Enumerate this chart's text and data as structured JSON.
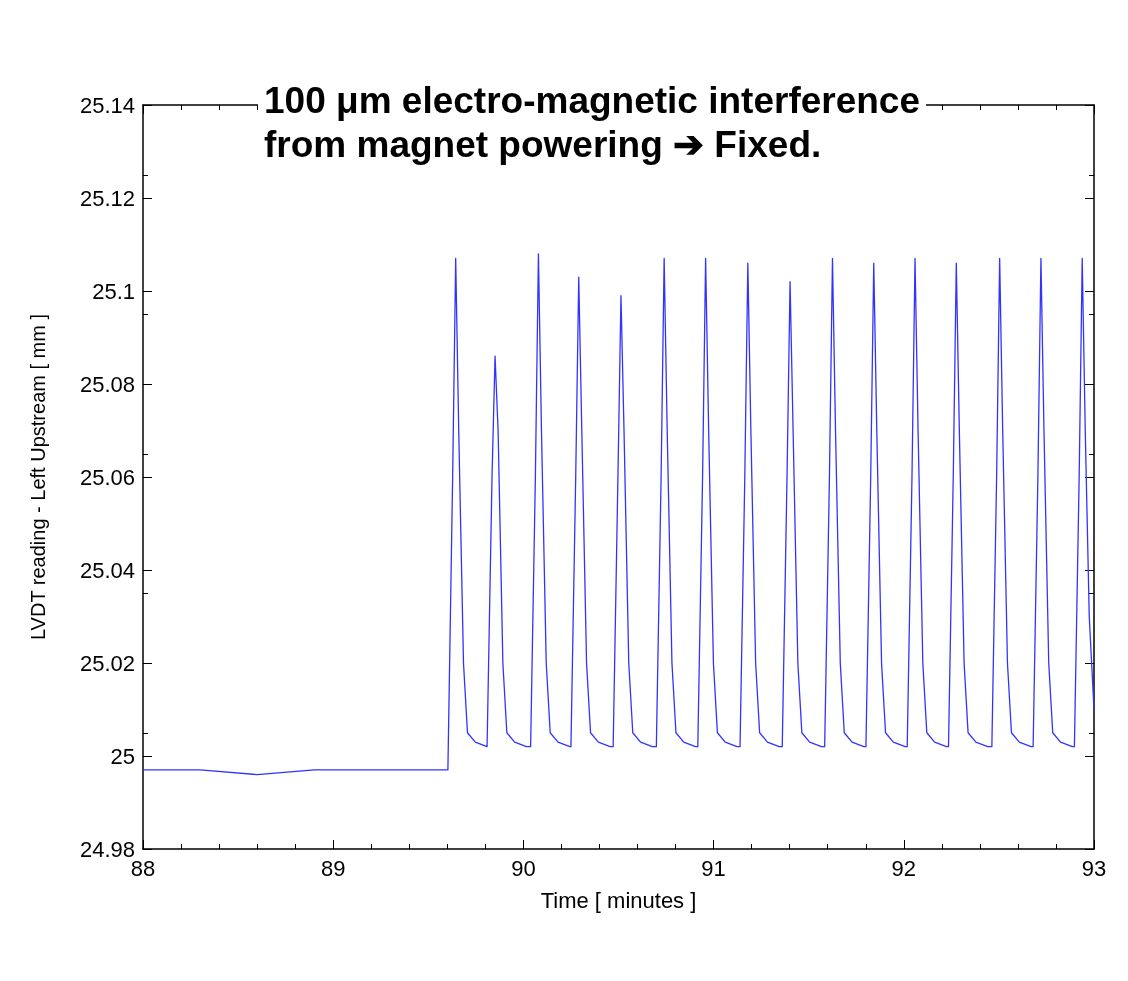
{
  "chart_data": {
    "type": "line",
    "title": "100 μm electro-magnetic interference\nfrom magnet powering ➔ Fixed.",
    "xlabel": "Time [ minutes ]",
    "ylabel": "LVDT reading - Left Upstream [ mm ]",
    "xlim": [
      88,
      93
    ],
    "xticks": [
      88,
      89,
      90,
      91,
      92,
      93
    ],
    "ylim": [
      24.98,
      25.14
    ],
    "yticks": [
      24.98,
      25,
      25.02,
      25.04,
      25.06,
      25.08,
      25.1,
      25.12,
      25.14
    ],
    "grid": false,
    "marker": "none",
    "line_style": "solid",
    "series": [
      {
        "color": "#3333ff",
        "x": [
          88,
          88.3,
          88.6,
          88.9,
          89.2,
          89.5,
          89.603,
          89.628,
          89.644,
          89.66,
          89.685,
          89.706,
          89.747,
          89.809,
          89.81,
          89.835,
          89.851,
          89.867,
          89.892,
          89.913,
          89.954,
          90.016,
          90.038,
          90.063,
          90.079,
          90.095,
          90.12,
          90.141,
          90.182,
          90.244,
          90.25,
          90.275,
          90.291,
          90.307,
          90.332,
          90.353,
          90.394,
          90.456,
          90.472,
          90.497,
          90.513,
          90.529,
          90.554,
          90.575,
          90.616,
          90.678,
          90.699,
          90.724,
          90.74,
          90.756,
          90.781,
          90.802,
          90.843,
          90.905,
          90.917,
          90.942,
          90.958,
          90.974,
          90.999,
          91.02,
          91.061,
          91.123,
          91.139,
          91.164,
          91.18,
          91.196,
          91.221,
          91.242,
          91.283,
          91.345,
          91.361,
          91.386,
          91.402,
          91.418,
          91.443,
          91.464,
          91.505,
          91.567,
          91.584,
          91.609,
          91.625,
          91.641,
          91.666,
          91.687,
          91.728,
          91.79,
          91.801,
          91.826,
          91.842,
          91.858,
          91.883,
          91.904,
          91.945,
          92.007,
          92.018,
          92.043,
          92.059,
          92.075,
          92.1,
          92.121,
          92.162,
          92.224,
          92.235,
          92.26,
          92.276,
          92.292,
          92.317,
          92.338,
          92.379,
          92.441,
          92.463,
          92.488,
          92.504,
          92.52,
          92.545,
          92.566,
          92.607,
          92.669,
          92.68,
          92.705,
          92.721,
          92.737,
          92.762,
          92.783,
          92.824,
          92.886,
          92.897,
          92.922,
          92.938,
          92.954,
          92.975,
          93.0
        ],
        "values": [
          24.997,
          24.997,
          24.996,
          24.997,
          24.997,
          24.997,
          24.997,
          25.06,
          25.107,
          25.07,
          25.02,
          25.005,
          25.003,
          25.002,
          25.002,
          25.06,
          25.086,
          25.07,
          25.02,
          25.005,
          25.003,
          25.002,
          25.002,
          25.06,
          25.108,
          25.07,
          25.02,
          25.005,
          25.003,
          25.002,
          25.002,
          25.06,
          25.103,
          25.07,
          25.02,
          25.005,
          25.003,
          25.002,
          25.002,
          25.06,
          25.099,
          25.07,
          25.02,
          25.005,
          25.003,
          25.002,
          25.002,
          25.06,
          25.107,
          25.07,
          25.02,
          25.005,
          25.003,
          25.002,
          25.002,
          25.06,
          25.107,
          25.07,
          25.02,
          25.005,
          25.003,
          25.002,
          25.002,
          25.06,
          25.106,
          25.07,
          25.02,
          25.005,
          25.003,
          25.002,
          25.002,
          25.06,
          25.102,
          25.07,
          25.02,
          25.005,
          25.003,
          25.002,
          25.002,
          25.06,
          25.107,
          25.07,
          25.02,
          25.005,
          25.003,
          25.002,
          25.002,
          25.06,
          25.106,
          25.07,
          25.02,
          25.005,
          25.003,
          25.002,
          25.002,
          25.06,
          25.107,
          25.07,
          25.02,
          25.005,
          25.003,
          25.002,
          25.002,
          25.06,
          25.106,
          25.07,
          25.02,
          25.005,
          25.003,
          25.002,
          25.002,
          25.06,
          25.107,
          25.07,
          25.02,
          25.005,
          25.003,
          25.002,
          25.002,
          25.06,
          25.107,
          25.07,
          25.02,
          25.005,
          25.003,
          25.002,
          25.002,
          25.06,
          25.107,
          25.07,
          25.03,
          25.01
        ]
      }
    ]
  }
}
